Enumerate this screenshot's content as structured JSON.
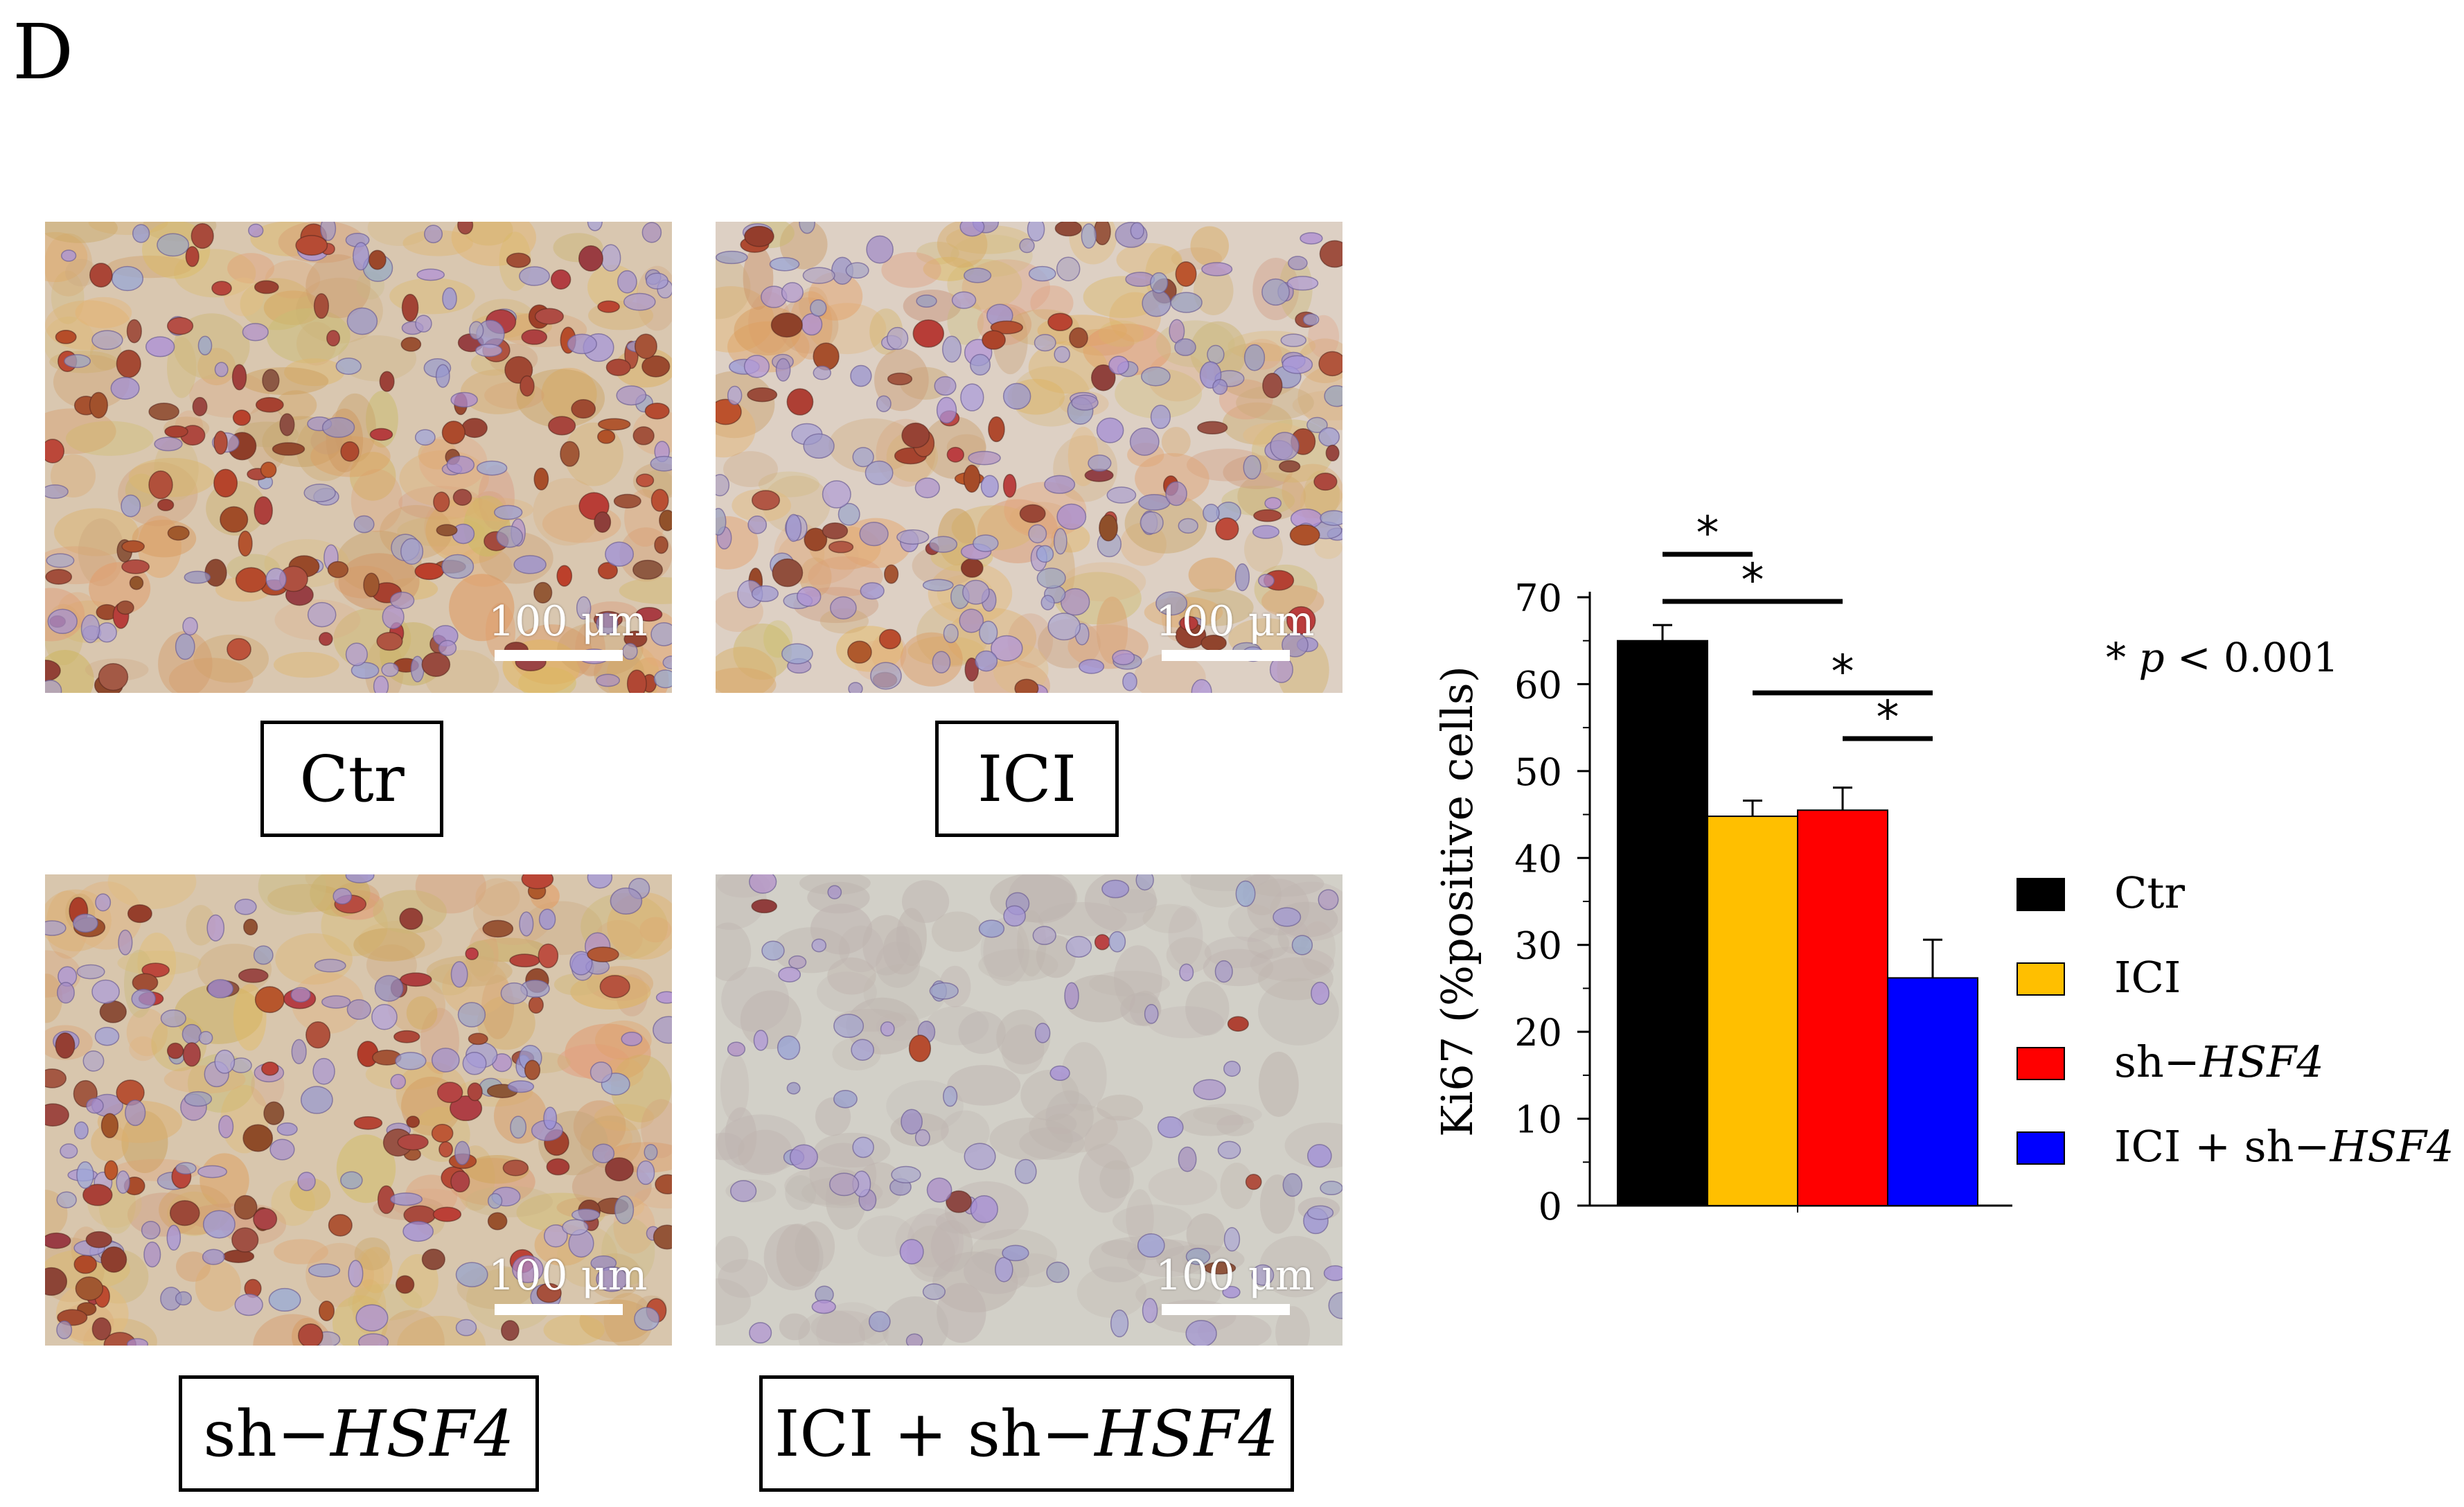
{
  "panel_letter": "D",
  "micrographs": [
    {
      "id": "ctr",
      "scale_label": "100 μm",
      "caption_parts": [
        {
          "t": "Ctr",
          "i": false
        }
      ],
      "bg": "#d9c7b0",
      "stain_density": 0.55,
      "hue": "brown"
    },
    {
      "id": "ici",
      "scale_label": "100 μm",
      "caption_parts": [
        {
          "t": "ICI",
          "i": false
        }
      ],
      "bg": "#ddd0c4",
      "stain_density": 0.3,
      "hue": "mixed"
    },
    {
      "id": "sh",
      "scale_label": "100 μm",
      "caption_parts": [
        {
          "t": "sh−",
          "i": false
        },
        {
          "t": "HSF4",
          "i": true
        }
      ],
      "bg": "#d8c6ad",
      "stain_density": 0.45,
      "hue": "brown"
    },
    {
      "id": "icish",
      "scale_label": "100 μm",
      "caption_parts": [
        {
          "t": "ICI + sh−",
          "i": false
        },
        {
          "t": "HSF4",
          "i": true
        }
      ],
      "bg": "#d2d0c8",
      "stain_density": 0.06,
      "hue": "purple"
    }
  ],
  "significance_note": {
    "star": "*",
    "p": "p",
    "rest": "< 0.001"
  },
  "chart_data": {
    "type": "bar",
    "categories": [
      "Ctr",
      "ICI",
      "sh−HSF4",
      "ICI + sh−HSF4"
    ],
    "legend": [
      {
        "label_parts": [
          {
            "t": "Ctr",
            "i": false
          }
        ],
        "color": "#000000"
      },
      {
        "label_parts": [
          {
            "t": "ICI",
            "i": false
          }
        ],
        "color": "#ffbf00"
      },
      {
        "label_parts": [
          {
            "t": "sh−",
            "i": false
          },
          {
            "t": "HSF4",
            "i": true
          }
        ],
        "color": "#ff0000"
      },
      {
        "label_parts": [
          {
            "t": "ICI + sh−",
            "i": false
          },
          {
            "t": "HSF4",
            "i": true
          }
        ],
        "color": "#0000ff"
      }
    ],
    "values": [
      65,
      44.8,
      45.5,
      26.2
    ],
    "errors": [
      1.8,
      1.8,
      2.6,
      4.4
    ],
    "colors": [
      "#000000",
      "#ffbf00",
      "#ff0000",
      "#0000ff"
    ],
    "ylabel": "Ki67 (%positive cells)",
    "ylim": [
      0,
      70
    ],
    "yticks": [
      0,
      10,
      20,
      30,
      40,
      50,
      60,
      70
    ],
    "legend_position": "right",
    "significance": [
      {
        "from": 0,
        "to": 1,
        "label": "*"
      },
      {
        "from": 0,
        "to": 2,
        "label": "*"
      },
      {
        "from": 1,
        "to": 3,
        "label": "*"
      },
      {
        "from": 2,
        "to": 3,
        "label": "*"
      }
    ]
  }
}
